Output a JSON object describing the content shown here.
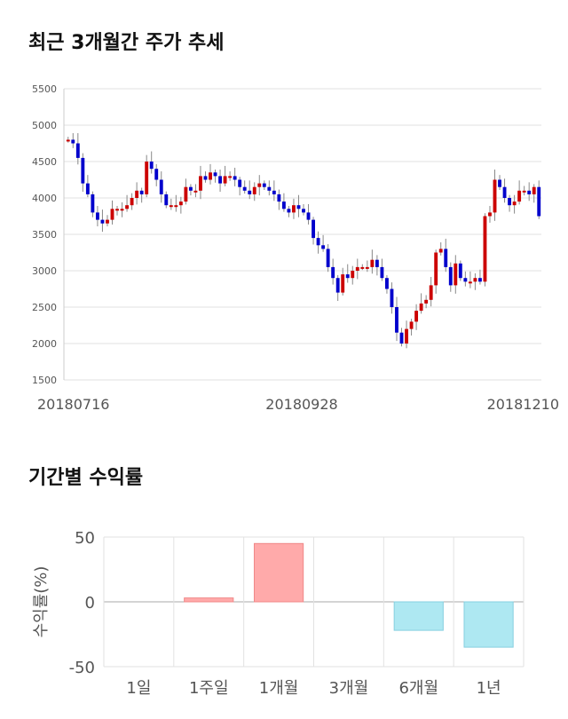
{
  "titles": {
    "price_trend": "최근 3개월간 주가 추세",
    "period_returns": "기간별 수익률"
  },
  "colors": {
    "up": "#cc0000",
    "down": "#0000cc",
    "wick": "#888888",
    "positive_bar": "#ffaaaa",
    "negative_bar": "#aee8f2",
    "grid": "#e2e2e2"
  },
  "chart_data": [
    {
      "type": "candlestick",
      "title": "최근 3개월간 주가 추세",
      "ylim": [
        1500,
        5500
      ],
      "yticks": [
        1500,
        2000,
        2500,
        3000,
        3500,
        4000,
        4500,
        5000,
        5500
      ],
      "xticks": [
        "20180716",
        "20180928",
        "20181210"
      ],
      "grid": true,
      "close": [
        4800,
        4750,
        4550,
        4200,
        4050,
        3800,
        3700,
        3650,
        3700,
        3850,
        3850,
        3850,
        3900,
        4000,
        4100,
        4050,
        4500,
        4400,
        4250,
        4050,
        3900,
        3900,
        3900,
        3950,
        4150,
        4100,
        4100,
        4300,
        4250,
        4350,
        4300,
        4200,
        4300,
        4300,
        4250,
        4150,
        4100,
        4050,
        4150,
        4200,
        4150,
        4100,
        4050,
        3950,
        3850,
        3800,
        3900,
        3850,
        3800,
        3700,
        3450,
        3350,
        3300,
        3050,
        2900,
        2700,
        2950,
        2900,
        3000,
        3050,
        3050,
        3050,
        3150,
        3050,
        2900,
        2750,
        2500,
        2150,
        2000,
        2200,
        2300,
        2450,
        2550,
        2600,
        2800,
        3250,
        3300,
        3050,
        2800,
        3100,
        2900,
        2850,
        2850,
        2900,
        2850,
        3750,
        3800,
        4250,
        4150,
        4000,
        3900,
        3950,
        4100,
        4100,
        4050,
        4150,
        3750
      ],
      "open": [
        4800,
        4800,
        4750,
        4550,
        4200,
        4050,
        3800,
        3700,
        3650,
        3700,
        3850,
        3850,
        3850,
        3900,
        4000,
        4100,
        4050,
        4500,
        4400,
        4250,
        4050,
        3900,
        3900,
        3900,
        3950,
        4150,
        4100,
        4100,
        4300,
        4250,
        4350,
        4300,
        4200,
        4300,
        4300,
        4250,
        4150,
        4100,
        4050,
        4150,
        4200,
        4150,
        4100,
        4050,
        3950,
        3850,
        3800,
        3900,
        3850,
        3800,
        3700,
        3450,
        3350,
        3300,
        3050,
        2900,
        2700,
        2950,
        2900,
        3000,
        3050,
        3050,
        3050,
        3150,
        3050,
        2900,
        2750,
        2500,
        2150,
        2000,
        2200,
        2300,
        2450,
        2550,
        2600,
        2800,
        3250,
        3300,
        3050,
        2800,
        3100,
        2900,
        2850,
        2850,
        2900,
        2850,
        3750,
        3800,
        4250,
        4150,
        4000,
        3900,
        3950,
        4100,
        4100,
        4050,
        4150
      ]
    },
    {
      "type": "bar",
      "categories": [
        "1일",
        "1주일",
        "1개월",
        "3개월",
        "6개월",
        "1년"
      ],
      "values": [
        0,
        3,
        45,
        0,
        -22,
        -35
      ],
      "ylabel": "수익률(%)",
      "ylim": [
        -50,
        50
      ],
      "yticks": [
        50,
        0,
        -50
      ],
      "grid": true
    }
  ]
}
